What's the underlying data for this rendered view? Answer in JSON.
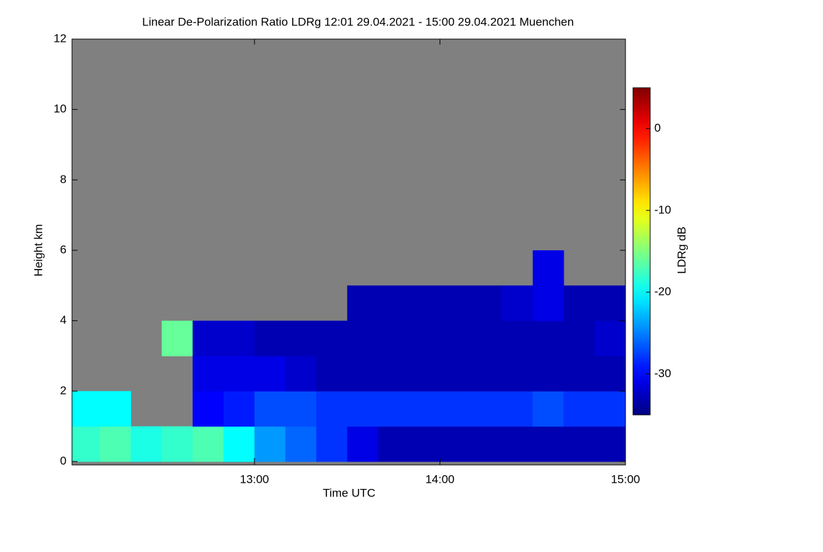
{
  "chart_data": {
    "type": "heatmap",
    "title": "Linear De-Polarization Ratio LDRg   12:01 29.04.2021 - 15:00 29.04.2021 Muenchen",
    "x_label": "Time UTC",
    "y_label": "Height km",
    "colorbar_label": "LDRg dB",
    "colormap": "jet",
    "nan_color": "#808080",
    "xbins": [
      12.0167,
      12.1667,
      12.3333,
      12.5,
      12.6667,
      12.8333,
      13,
      13.1667,
      13.3333,
      13.5,
      13.6667,
      13.8333,
      14,
      14.1667,
      14.3333,
      14.5,
      14.6667,
      14.8333,
      15
    ],
    "ybins": [
      0,
      1,
      2,
      3,
      4,
      5,
      6,
      7,
      8,
      9,
      10,
      11,
      12
    ],
    "values": [
      [
        -18,
        -17,
        -19,
        -18,
        -17,
        -20,
        -24,
        -26,
        -28,
        -31,
        -33,
        -33,
        -33,
        -33,
        -33,
        -33,
        -33,
        -33
      ],
      [
        -20,
        -20,
        null,
        null,
        -30,
        -29,
        -27,
        -27,
        -28,
        -28,
        -28,
        -28,
        -28,
        -28,
        -28,
        -27,
        -28,
        -28
      ],
      [
        null,
        null,
        null,
        null,
        -31,
        -31,
        -31,
        -32,
        -33,
        -33,
        -33,
        -33,
        -33,
        -33,
        -33,
        -33,
        -33,
        -33
      ],
      [
        null,
        null,
        null,
        -16,
        -32,
        -32,
        -33,
        -33,
        -33,
        -33,
        -33,
        -33,
        -33,
        -33,
        -33,
        -33,
        -33,
        -32
      ],
      [
        null,
        null,
        null,
        null,
        null,
        null,
        null,
        null,
        null,
        -33,
        -33,
        -33,
        -33,
        -33,
        -32,
        -31,
        -33,
        -33
      ],
      [
        null,
        null,
        null,
        null,
        null,
        null,
        null,
        null,
        null,
        null,
        null,
        null,
        null,
        null,
        null,
        -31,
        null,
        null
      ],
      [
        null,
        null,
        null,
        null,
        null,
        null,
        null,
        null,
        null,
        null,
        null,
        null,
        null,
        null,
        null,
        null,
        null,
        null
      ],
      [
        null,
        null,
        null,
        null,
        null,
        null,
        null,
        null,
        null,
        null,
        null,
        null,
        null,
        null,
        null,
        null,
        null,
        null
      ],
      [
        null,
        null,
        null,
        null,
        null,
        null,
        null,
        null,
        null,
        null,
        null,
        null,
        null,
        null,
        null,
        null,
        null,
        null
      ],
      [
        null,
        null,
        null,
        null,
        null,
        null,
        null,
        null,
        null,
        null,
        null,
        null,
        null,
        null,
        null,
        null,
        null,
        null
      ],
      [
        null,
        null,
        null,
        null,
        null,
        null,
        null,
        null,
        null,
        null,
        null,
        null,
        null,
        null,
        null,
        null,
        null,
        null
      ],
      [
        null,
        null,
        null,
        null,
        null,
        null,
        null,
        null,
        null,
        null,
        null,
        null,
        null,
        null,
        null,
        null,
        null,
        null
      ]
    ],
    "xlim": [
      12.0167,
      15
    ],
    "xticks": [
      {
        "value": 13,
        "label": "13:00"
      },
      {
        "value": 14,
        "label": "14:00"
      },
      {
        "value": 15,
        "label": "15:00"
      }
    ],
    "ylim": [
      0,
      12
    ],
    "yticks": [
      0,
      2,
      4,
      6,
      8,
      10,
      12
    ],
    "clim": [
      -35,
      5
    ],
    "cticks": [
      0,
      -10,
      -20,
      -30
    ]
  }
}
